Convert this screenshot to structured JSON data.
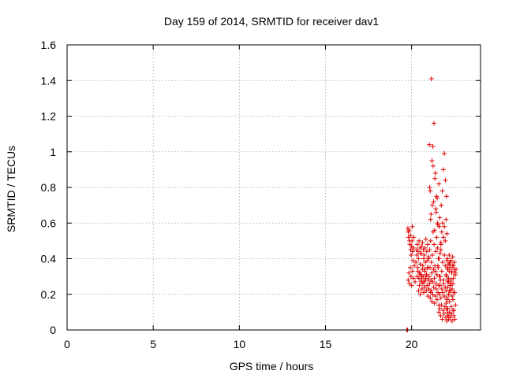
{
  "chart_data": {
    "type": "scatter",
    "title": "Day 159 of 2014, SRMTID for receiver dav1",
    "xlabel": "GPS time / hours",
    "ylabel": "SRMTID / TECUs",
    "xlim": [
      0,
      24
    ],
    "ylim": [
      0,
      1.6
    ],
    "xticks": [
      0,
      5,
      10,
      15,
      20
    ],
    "yticks": [
      0,
      0.2,
      0.4,
      0.6,
      0.8,
      1,
      1.2,
      1.4,
      1.6
    ],
    "xtick_labels": [
      "0",
      "5",
      "10",
      "15",
      "20"
    ],
    "ytick_labels": [
      "0",
      "0.2",
      "0.4",
      "0.6",
      "0.8",
      "1",
      "1.2",
      "1.4",
      "1.6"
    ],
    "grid": true,
    "marker": "+",
    "color": "#e00000",
    "series": [
      {
        "name": "dav1",
        "x": [
          19.72,
          19.74,
          19.75,
          19.77,
          19.78,
          19.8,
          19.82,
          19.85,
          19.88,
          19.9,
          19.93,
          19.95,
          19.97,
          20.0,
          20.02,
          20.04,
          20.06,
          20.08,
          20.1,
          20.12,
          19.8,
          19.84,
          19.88,
          19.92,
          19.96,
          20.0,
          20.05,
          20.1,
          20.15,
          20.2,
          20.25,
          20.3,
          20.35,
          20.4,
          20.45,
          20.5,
          20.55,
          20.6,
          20.65,
          20.7,
          20.75,
          20.8,
          20.85,
          20.9,
          20.95,
          20.28,
          20.33,
          20.38,
          20.43,
          20.48,
          20.53,
          20.58,
          20.63,
          20.68,
          20.73,
          20.78,
          20.83,
          20.88,
          20.93,
          20.98,
          20.4,
          20.45,
          20.5,
          20.55,
          20.6,
          20.65,
          20.7,
          20.75,
          20.8,
          20.85,
          20.9,
          20.95,
          21.0,
          21.05,
          21.1,
          20.32,
          20.37,
          20.42,
          20.47,
          20.52,
          20.57,
          20.62,
          20.67,
          20.72,
          20.77,
          20.82,
          20.87,
          20.92,
          20.97,
          21.0,
          21.05,
          21.1,
          21.15,
          21.2,
          21.25,
          21.3,
          21.35,
          21.4,
          21.45,
          21.5,
          21.55,
          21.6,
          21.65,
          21.7,
          21.02,
          21.07,
          21.12,
          21.17,
          21.22,
          21.27,
          21.32,
          21.37,
          21.42,
          21.47,
          21.52,
          21.57,
          21.62,
          21.67,
          21.05,
          21.1,
          21.15,
          21.2,
          21.25,
          21.3,
          21.35,
          21.4,
          21.45,
          21.5,
          21.03,
          21.08,
          21.13,
          21.18,
          21.23,
          21.28,
          21.33,
          21.38,
          21.43,
          21.48,
          21.53,
          21.58,
          21.63,
          21.08,
          21.13,
          21.18,
          21.23,
          21.28,
          21.33,
          21.38,
          21.43,
          21.48,
          21.53,
          21.58,
          21.55,
          21.6,
          21.65,
          21.7,
          21.75,
          21.8,
          21.85,
          21.9,
          21.95,
          22.0,
          22.05,
          22.1,
          22.15,
          22.2,
          21.58,
          21.63,
          21.68,
          21.73,
          21.78,
          21.83,
          21.88,
          21.93,
          21.98,
          22.03,
          22.08,
          22.13,
          21.6,
          21.65,
          21.7,
          21.75,
          21.8,
          21.85,
          21.9,
          21.95,
          22.0,
          22.05,
          22.1,
          22.15,
          21.7,
          21.75,
          21.8,
          21.85,
          21.9,
          21.95,
          22.0,
          22.05,
          21.72,
          21.78,
          21.84,
          21.9,
          21.96,
          22.02,
          22.0,
          22.05,
          22.1,
          22.15,
          22.2,
          22.25,
          22.3,
          22.35,
          22.4,
          22.45,
          22.5,
          22.55,
          22.03,
          22.08,
          22.13,
          22.18,
          22.23,
          22.28,
          22.33,
          22.38,
          22.43,
          22.48,
          22.53,
          22.05,
          22.1,
          22.15,
          22.2,
          22.25,
          22.3,
          22.35,
          22.4,
          22.45,
          22.5,
          22.08,
          22.13,
          22.18,
          22.23,
          22.28,
          22.33,
          22.38,
          22.43,
          22.48,
          22.53,
          22.58,
          22.1,
          22.15,
          22.2,
          22.25,
          22.3,
          22.35,
          22.4,
          22.45
        ],
        "y": [
          0.0,
          0.0,
          0.0,
          0.0,
          0.57,
          0.55,
          0.52,
          0.56,
          0.5,
          0.48,
          0.53,
          0.45,
          0.42,
          0.47,
          0.5,
          0.58,
          0.44,
          0.39,
          0.46,
          0.52,
          0.28,
          0.32,
          0.26,
          0.35,
          0.3,
          0.25,
          0.33,
          0.29,
          0.36,
          0.27,
          0.38,
          0.42,
          0.35,
          0.4,
          0.32,
          0.37,
          0.43,
          0.3,
          0.36,
          0.4,
          0.34,
          0.38,
          0.31,
          0.39,
          0.35,
          0.45,
          0.48,
          0.44,
          0.5,
          0.46,
          0.43,
          0.47,
          0.49,
          0.45,
          0.42,
          0.46,
          0.51,
          0.44,
          0.48,
          0.41,
          0.22,
          0.25,
          0.2,
          0.27,
          0.23,
          0.26,
          0.21,
          0.24,
          0.28,
          0.22,
          0.25,
          0.19,
          0.23,
          0.26,
          0.21,
          0.3,
          0.33,
          0.29,
          0.32,
          0.31,
          0.28,
          0.34,
          0.3,
          0.27,
          0.33,
          0.29,
          0.31,
          0.35,
          0.28,
          0.4,
          0.45,
          0.5,
          0.38,
          0.42,
          0.55,
          0.48,
          0.36,
          0.44,
          0.52,
          0.46,
          0.4,
          0.58,
          0.43,
          0.49,
          0.3,
          0.35,
          0.28,
          0.32,
          0.27,
          0.34,
          0.29,
          0.33,
          0.26,
          0.31,
          0.36,
          0.25,
          0.3,
          0.28,
          0.8,
          0.62,
          1.41,
          0.7,
          0.92,
          1.16,
          0.85,
          0.68,
          0.75,
          0.6,
          1.04,
          0.78,
          0.65,
          0.95,
          1.03,
          0.72,
          0.56,
          0.88,
          0.66,
          0.74,
          0.59,
          0.82,
          0.63,
          0.18,
          0.22,
          0.16,
          0.2,
          0.24,
          0.15,
          0.19,
          0.23,
          0.17,
          0.21,
          0.14,
          0.35,
          0.4,
          0.3,
          0.45,
          0.33,
          0.38,
          0.28,
          0.42,
          0.36,
          0.31,
          0.39,
          0.34,
          0.29,
          0.37,
          0.1,
          0.12,
          0.08,
          0.14,
          0.06,
          0.11,
          0.09,
          0.13,
          0.07,
          0.12,
          0.1,
          0.08,
          0.2,
          0.25,
          0.18,
          0.23,
          0.21,
          0.26,
          0.19,
          0.24,
          0.22,
          0.17,
          0.27,
          0.2,
          0.48,
          0.55,
          0.6,
          0.52,
          0.58,
          0.5,
          0.62,
          0.54,
          0.7,
          0.78,
          0.9,
          0.99,
          0.84,
          0.75,
          0.15,
          0.18,
          0.12,
          0.2,
          0.16,
          0.22,
          0.13,
          0.19,
          0.17,
          0.11,
          0.21,
          0.14,
          0.3,
          0.35,
          0.28,
          0.33,
          0.38,
          0.26,
          0.32,
          0.36,
          0.29,
          0.34,
          0.31,
          0.05,
          0.08,
          0.06,
          0.1,
          0.07,
          0.09,
          0.05,
          0.11,
          0.08,
          0.06,
          0.4,
          0.37,
          0.42,
          0.35,
          0.39,
          0.33,
          0.41,
          0.36,
          0.38,
          0.32,
          0.34,
          0.24,
          0.27,
          0.22,
          0.25,
          0.28,
          0.23,
          0.26,
          0.21
        ]
      }
    ]
  }
}
